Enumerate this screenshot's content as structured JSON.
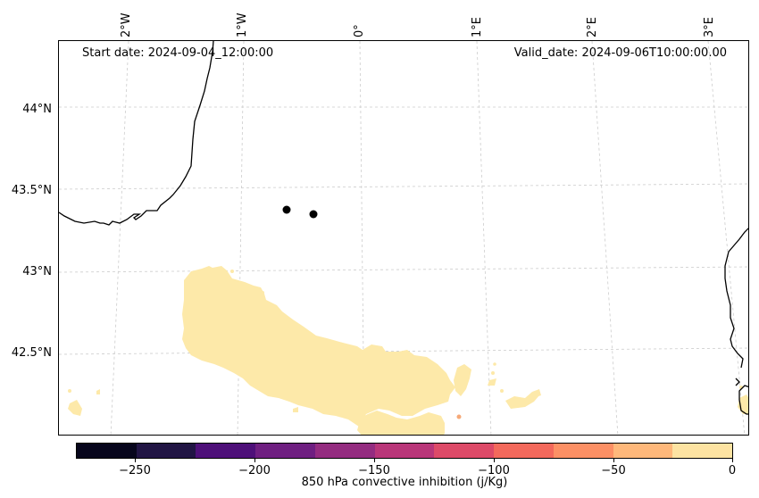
{
  "header": {
    "start_date": "Start date: 2024-09-04_12:00:00",
    "valid_date": "Valid_date: 2024-09-06T10:00:00.00"
  },
  "axes": {
    "lon_labels": [
      "2°W",
      "1°W",
      "0°",
      "1°E",
      "2°E",
      "3°E"
    ],
    "lat_labels": [
      "44°N",
      "43.5°N",
      "43°N",
      "42.5°N"
    ]
  },
  "colorbar": {
    "title": "850 hPa convective inhibition (j/Kg)",
    "tick_labels": [
      "−250",
      "−200",
      "−150",
      "−100",
      "−50",
      "0"
    ],
    "colors": [
      "#07061c",
      "#211544",
      "#4e1079",
      "#6f1f81",
      "#942c80",
      "#b93679",
      "#dd4a68",
      "#f3695c",
      "#fc9065",
      "#feb87b",
      "#fde3a2"
    ]
  },
  "field": {
    "fill_color": "#fde9a9",
    "highlight_color": "#f6a978"
  },
  "markers": {
    "color": "#000000",
    "count": 2
  },
  "colors": {
    "coastline": "#000000",
    "gridline": "#cccccc"
  }
}
